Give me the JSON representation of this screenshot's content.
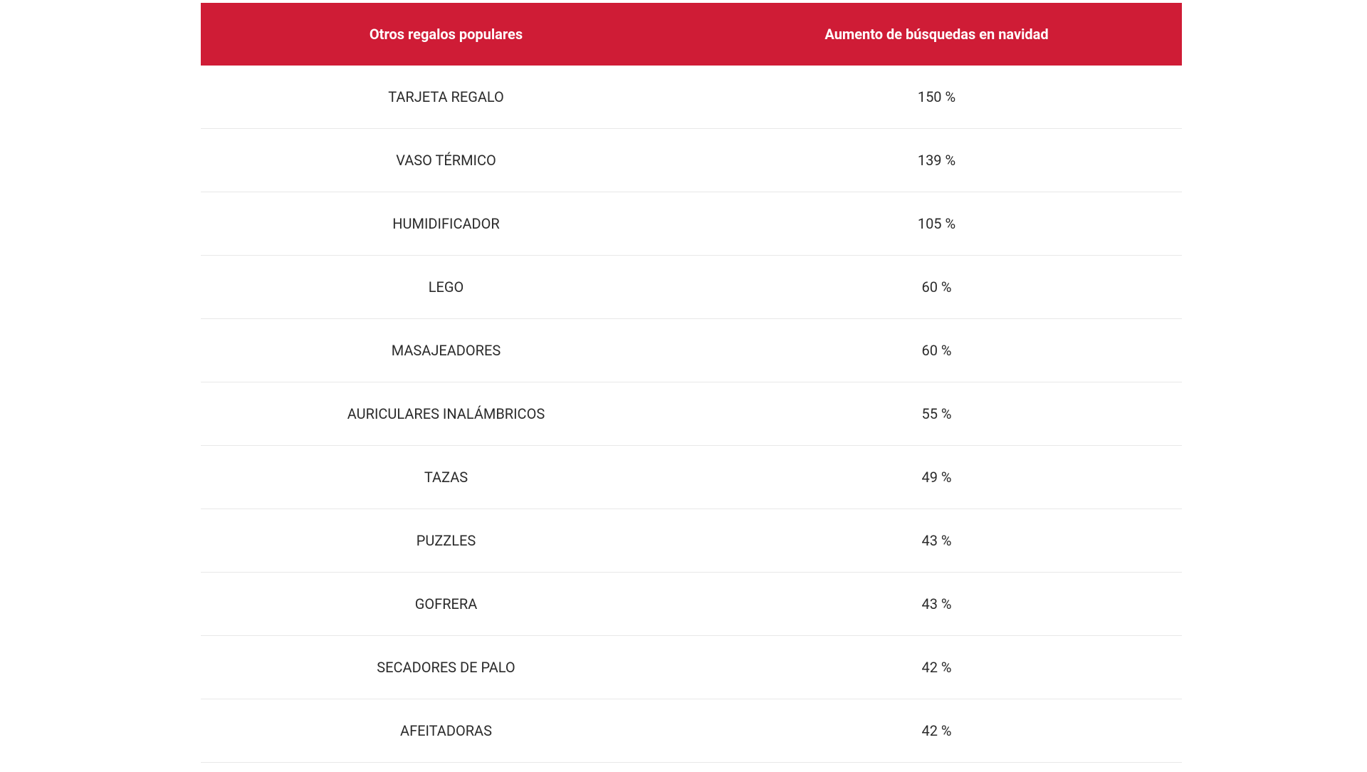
{
  "table": {
    "type": "table",
    "header_bg_color": "#cf1c36",
    "header_text_color": "#ffffff",
    "row_bg_color": "#ffffff",
    "row_text_color": "#2b2b2b",
    "border_color": "#e8e8e8",
    "header_fontsize": 20,
    "cell_fontsize": 20,
    "header_fontweight": 700,
    "cell_fontweight": 400,
    "columns": [
      {
        "label": "Otros regalos populares",
        "width": "50%",
        "align": "center"
      },
      {
        "label": "Aumento de búsquedas en navidad",
        "width": "50%",
        "align": "center"
      }
    ],
    "rows": [
      {
        "name": "TARJETA REGALO",
        "value": "150 %"
      },
      {
        "name": "VASO TÉRMICO",
        "value": "139 %"
      },
      {
        "name": "HUMIDIFICADOR",
        "value": "105 %"
      },
      {
        "name": "LEGO",
        "value": "60 %"
      },
      {
        "name": "MASAJEADORES",
        "value": "60 %"
      },
      {
        "name": "AURICULARES INALÁMBRICOS",
        "value": "55 %"
      },
      {
        "name": "TAZAS",
        "value": "49 %"
      },
      {
        "name": "PUZZLES",
        "value": "43 %"
      },
      {
        "name": "GOFRERA",
        "value": "43 %"
      },
      {
        "name": "SECADORES DE PALO",
        "value": "42 %"
      },
      {
        "name": "AFEITADORAS",
        "value": "42 %"
      }
    ]
  }
}
